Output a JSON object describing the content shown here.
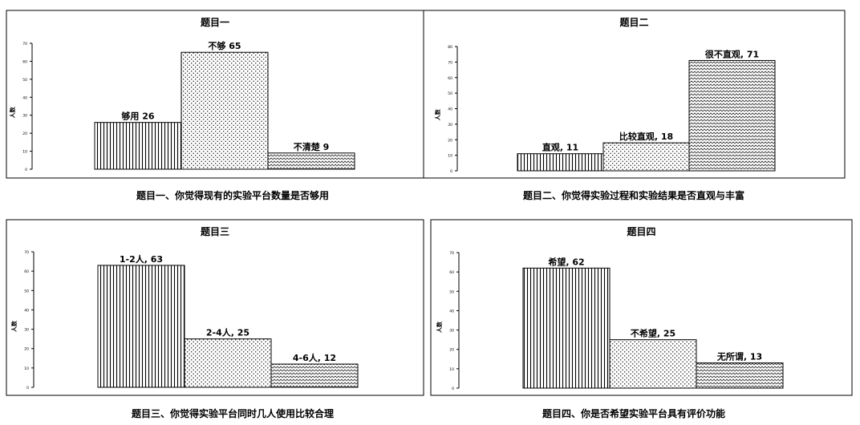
{
  "chart_data": [
    {
      "type": "bar",
      "title": "题目一",
      "caption": "题目一、你觉得现有的实验平台数量是否够用",
      "ylabel": "人数",
      "ylim": [
        0,
        70
      ],
      "yticks": [
        0,
        10,
        20,
        30,
        40,
        50,
        60,
        70
      ],
      "grid": false,
      "bars": [
        {
          "label": "够用 26",
          "value": 26,
          "pattern": "vertical-lines"
        },
        {
          "label": "不够 65",
          "value": 65,
          "pattern": "dots"
        },
        {
          "label": "不清楚 9",
          "value": 9,
          "pattern": "waves"
        }
      ]
    },
    {
      "type": "bar",
      "title": "题目二",
      "caption": "题目二、你觉得实验过程和实验结果是否直观与丰富",
      "ylabel": "人数",
      "ylim": [
        0,
        80
      ],
      "yticks": [
        0,
        10,
        20,
        30,
        40,
        50,
        60,
        70,
        80
      ],
      "grid": false,
      "bars": [
        {
          "label": "直观, 11",
          "value": 11,
          "pattern": "vertical-lines"
        },
        {
          "label": "比较直观, 18",
          "value": 18,
          "pattern": "dots"
        },
        {
          "label": "很不直观, 71",
          "value": 71,
          "pattern": "waves"
        }
      ]
    },
    {
      "type": "bar",
      "title": "题目三",
      "caption": "题目三、你觉得实验平台同时几人使用比较合理",
      "ylabel": "人数",
      "ylim": [
        0,
        70
      ],
      "yticks": [
        0,
        10,
        20,
        30,
        40,
        50,
        60,
        70
      ],
      "grid": false,
      "bars": [
        {
          "label": "1-2人, 63",
          "value": 63,
          "pattern": "vertical-lines"
        },
        {
          "label": "2-4人, 25",
          "value": 25,
          "pattern": "dots"
        },
        {
          "label": "4-6人, 12",
          "value": 12,
          "pattern": "waves"
        }
      ]
    },
    {
      "type": "bar",
      "title": "题目四",
      "caption": "题目四、你是否希望实验平台具有评价功能",
      "ylabel": "人数",
      "ylim": [
        0,
        70
      ],
      "yticks": [
        0,
        10,
        20,
        30,
        40,
        50,
        60,
        70
      ],
      "grid": false,
      "bars": [
        {
          "label": "希望, 62",
          "value": 62,
          "pattern": "vertical-lines"
        },
        {
          "label": "不希望, 25",
          "value": 25,
          "pattern": "dots"
        },
        {
          "label": "无所谓, 13",
          "value": 13,
          "pattern": "waves"
        }
      ]
    }
  ]
}
